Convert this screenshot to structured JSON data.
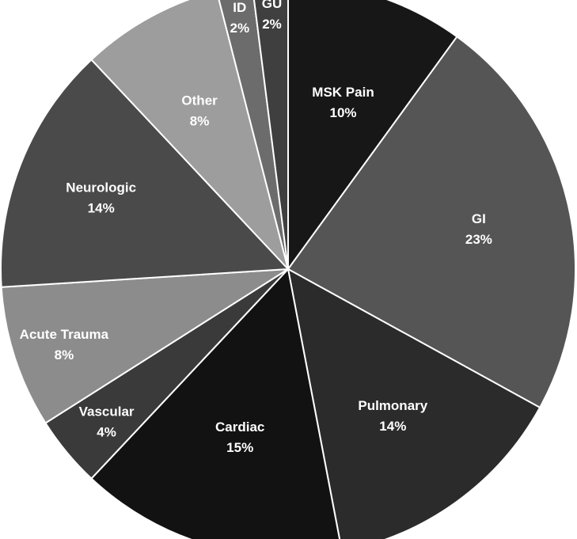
{
  "chart_data": {
    "type": "pie",
    "title": "",
    "slices": [
      {
        "label": "MSK Pain",
        "value": 10,
        "display": "10%",
        "color": "#171717"
      },
      {
        "label": "GI",
        "value": 23,
        "display": "23%",
        "color": "#555555"
      },
      {
        "label": "Pulmonary",
        "value": 14,
        "display": "14%",
        "color": "#2b2b2b"
      },
      {
        "label": "Cardiac",
        "value": 15,
        "display": "15%",
        "color": "#121212"
      },
      {
        "label": "Vascular",
        "value": 4,
        "display": "4%",
        "color": "#3a3a3a"
      },
      {
        "label": "Acute Trauma",
        "value": 8,
        "display": "8%",
        "color": "#8c8c8c"
      },
      {
        "label": "Neurologic",
        "value": 14,
        "display": "14%",
        "color": "#4a4a4a"
      },
      {
        "label": "Other",
        "value": 8,
        "display": "8%",
        "color": "#9d9d9d"
      },
      {
        "label": "ID",
        "value": 2,
        "display": "2%",
        "color": "#6c6c6c"
      },
      {
        "label": "GU",
        "value": 2,
        "display": "2%",
        "color": "#3f3f3f"
      }
    ],
    "start_angle": "12 o'clock",
    "direction": "clockwise",
    "legend": "none"
  }
}
